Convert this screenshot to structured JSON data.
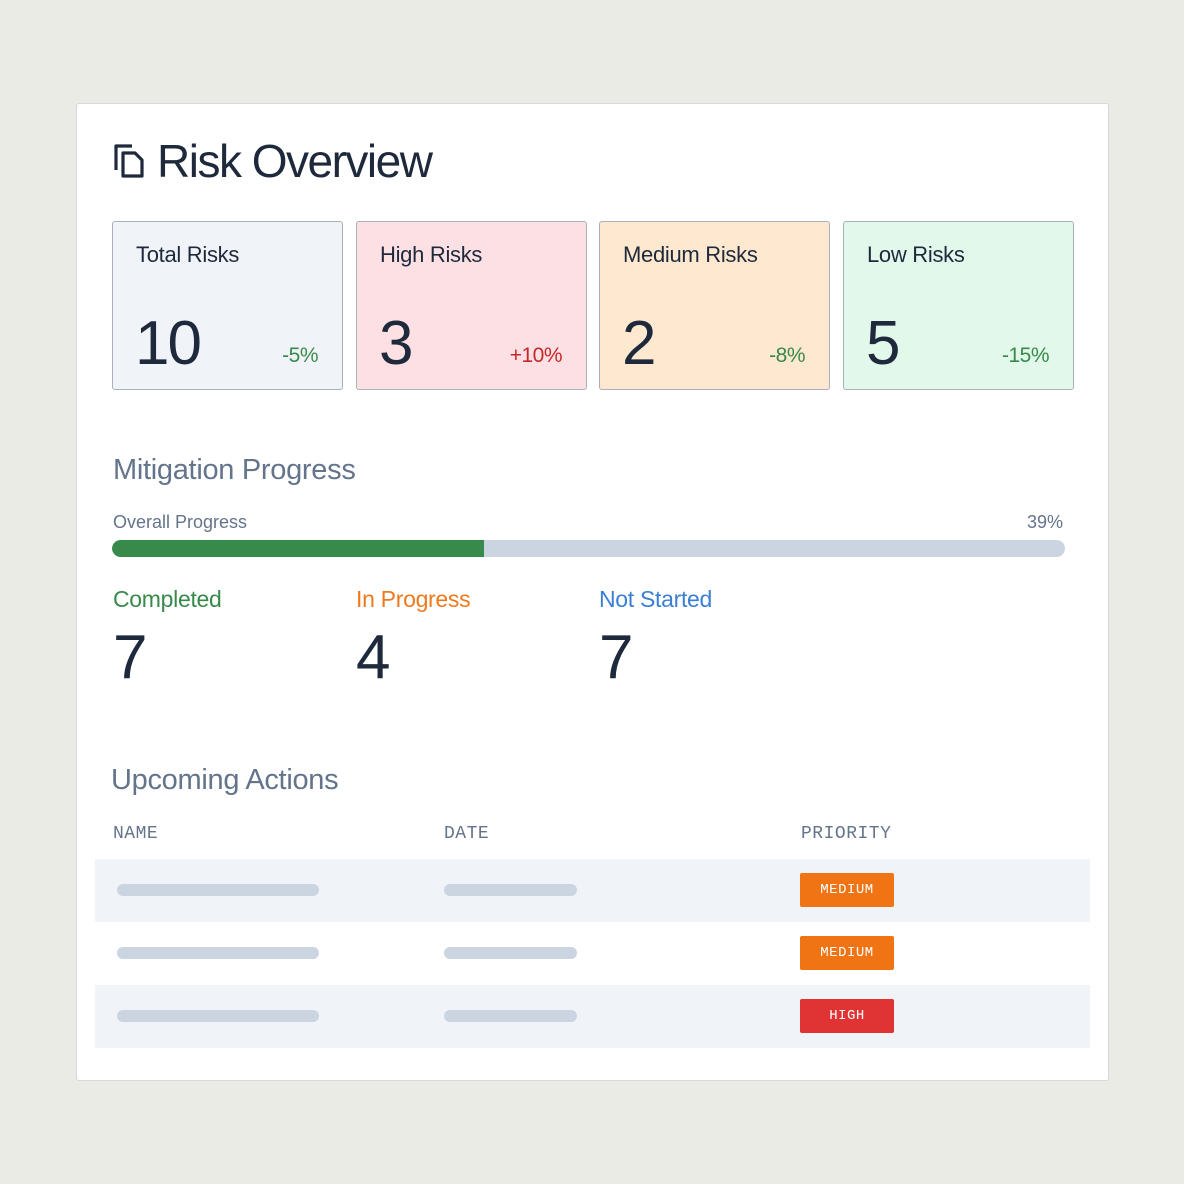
{
  "header": {
    "title": "Risk Overview",
    "icon": "copy-icon"
  },
  "stats": [
    {
      "label": "Total Risks",
      "value": "10",
      "change": "-5%",
      "bg": "#f0f4f9",
      "change_color": "#388a4b"
    },
    {
      "label": "High Risks",
      "value": "3",
      "change": "+10%",
      "bg": "#fde0e3",
      "change_color": "#c62828"
    },
    {
      "label": "Medium Risks",
      "value": "2",
      "change": "-8%",
      "bg": "#fee8cf",
      "change_color": "#388a4b"
    },
    {
      "label": "Low Risks",
      "value": "5",
      "change": "-15%",
      "bg": "#e1f8ea",
      "change_color": "#388a4b"
    }
  ],
  "mitigation": {
    "title": "Mitigation Progress",
    "overall_label": "Overall Progress",
    "overall_value": "39%",
    "overall_fraction": 0.39,
    "items": [
      {
        "label": "Completed",
        "value": "7",
        "color": "#388a4b"
      },
      {
        "label": "In Progress",
        "value": "4",
        "color": "#ee7a1f"
      },
      {
        "label": "Not Started",
        "value": "7",
        "color": "#3b7fd4"
      }
    ]
  },
  "actions": {
    "title": "Upcoming Actions",
    "columns": [
      "NAME",
      "DATE",
      "PRIORITY"
    ],
    "rows": [
      {
        "priority": "MEDIUM",
        "priority_color": "#f07414"
      },
      {
        "priority": "MEDIUM",
        "priority_color": "#f07414"
      },
      {
        "priority": "HIGH",
        "priority_color": "#e03434"
      }
    ]
  }
}
